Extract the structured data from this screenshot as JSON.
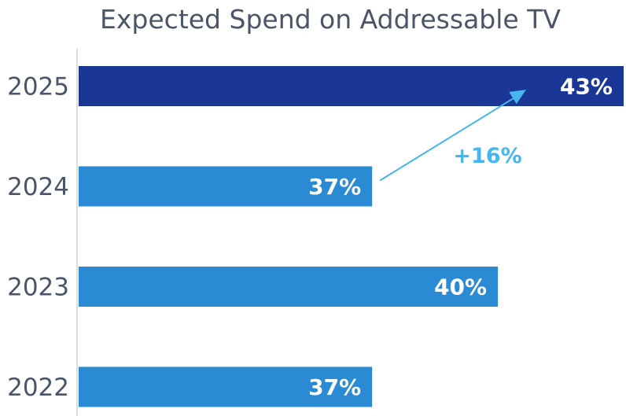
{
  "chart_data": {
    "type": "bar",
    "orientation": "horizontal",
    "title": "Expected Spend on Addressable TV",
    "xlabel": "",
    "ylabel": "",
    "categories": [
      "2025",
      "2024",
      "2023",
      "2022"
    ],
    "values": [
      43,
      37,
      40,
      37
    ],
    "value_labels": [
      "43%",
      "37%",
      "40%",
      "37%"
    ],
    "xlim": [
      30,
      43
    ],
    "grid": false,
    "legend": "none",
    "colors": {
      "highlight": "#1b3796",
      "default": "#2a8bd4",
      "annotation": "#45b6f0",
      "title": "#4b5568",
      "axis": "#dddddd"
    },
    "highlight_category": "2025",
    "annotation": {
      "text": "+16%",
      "from_category": "2024",
      "to_category": "2025"
    }
  }
}
